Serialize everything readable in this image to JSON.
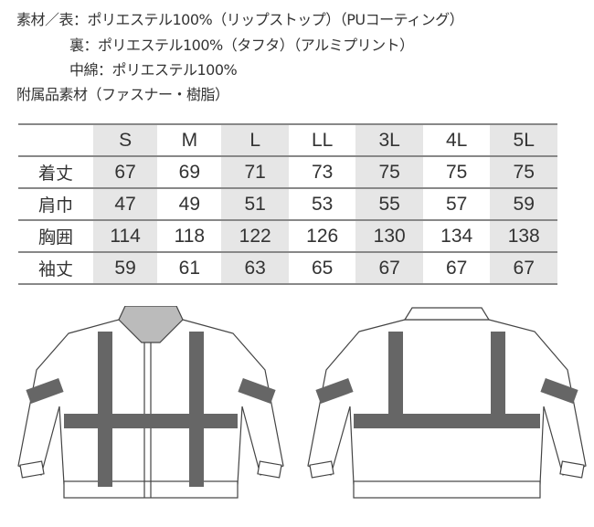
{
  "materials": {
    "line1": "素材／表：ポリエステル100%（リップストップ）（PUコーティング）",
    "line2": "裏：ポリエステル100%（タフタ）（アルミプリント）",
    "line3": "中綿：ポリエステル100%",
    "line4": "附属品素材（ファスナー・樹脂）"
  },
  "size_table": {
    "sizes": [
      "S",
      "M",
      "L",
      "LL",
      "3L",
      "4L",
      "5L"
    ],
    "rows": [
      {
        "label": "着丈",
        "values": [
          "67",
          "69",
          "71",
          "73",
          "75",
          "75",
          "75"
        ]
      },
      {
        "label": "肩巾",
        "values": [
          "47",
          "49",
          "51",
          "53",
          "55",
          "57",
          "59"
        ]
      },
      {
        "label": "胸囲",
        "values": [
          "114",
          "118",
          "122",
          "126",
          "130",
          "134",
          "138"
        ]
      },
      {
        "label": "袖丈",
        "values": [
          "59",
          "61",
          "63",
          "65",
          "67",
          "67",
          "67"
        ]
      }
    ]
  },
  "colors": {
    "shaded_column": "#e6e6e6",
    "reflector": "#666666"
  }
}
